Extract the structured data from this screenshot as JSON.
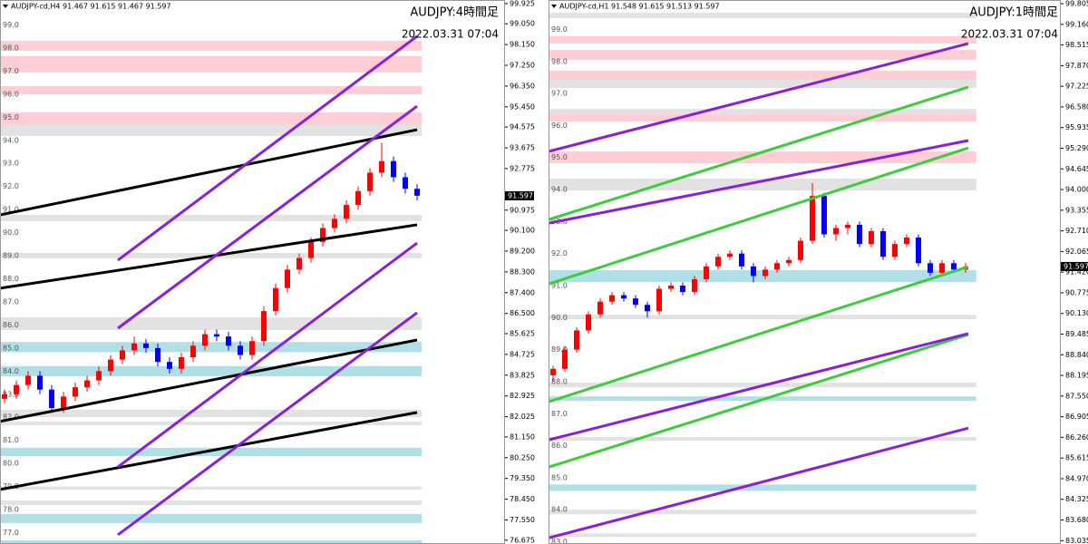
{
  "chart_data": [
    {
      "type": "candlestick",
      "title": "AUDJPY-cd,H4  91.467 91.615 91.467 91.597",
      "subtitle": "AUDJPY:4時間足",
      "annotation": "2022.03.31 07:04",
      "up_color": "#ff0000",
      "down_color": "#0000ff",
      "last_price": 91.597,
      "xlim": [
        -0.385,
        42.46
      ],
      "ylim": [
        76.51,
        100.08
      ],
      "open": [
        82.8,
        83.0,
        83.4,
        83.8,
        83.2,
        82.4,
        82.9,
        83.3,
        83.6,
        84.0,
        84.5,
        84.9,
        85.2,
        85.0,
        84.4,
        84.1,
        84.6,
        85.1,
        85.6,
        85.5,
        85.1,
        84.7,
        85.3,
        86.6,
        87.6,
        88.4,
        88.9,
        89.6,
        90.2,
        90.6,
        91.2,
        91.8,
        92.6,
        93.1,
        92.4,
        91.9
      ],
      "high": [
        83.2,
        83.6,
        84.0,
        84.0,
        83.4,
        83.1,
        83.5,
        83.8,
        84.2,
        84.7,
        85.1,
        85.5,
        85.4,
        85.2,
        84.6,
        84.8,
        85.3,
        85.8,
        85.8,
        85.7,
        85.3,
        85.5,
        86.8,
        87.8,
        88.6,
        89.1,
        89.8,
        90.4,
        90.8,
        91.4,
        92.0,
        92.8,
        93.9,
        93.3,
        92.6,
        92.1
      ],
      "low": [
        82.6,
        82.8,
        83.2,
        83.0,
        82.2,
        82.2,
        82.7,
        83.1,
        83.4,
        83.8,
        84.3,
        84.7,
        84.8,
        84.2,
        83.9,
        83.9,
        84.4,
        84.9,
        85.3,
        84.9,
        84.5,
        84.5,
        85.1,
        86.4,
        87.4,
        88.2,
        88.7,
        89.4,
        90.0,
        90.4,
        91.0,
        91.6,
        92.4,
        92.2,
        91.7,
        91.4
      ],
      "close": [
        83.0,
        83.4,
        83.8,
        83.2,
        82.4,
        82.9,
        83.3,
        83.6,
        84.0,
        84.5,
        84.9,
        85.2,
        85.0,
        84.4,
        84.1,
        84.6,
        85.1,
        85.6,
        85.5,
        85.1,
        84.7,
        85.3,
        86.6,
        87.6,
        88.4,
        88.9,
        89.6,
        90.2,
        90.6,
        91.2,
        91.8,
        92.6,
        93.1,
        92.4,
        91.9,
        91.6
      ],
      "zones": [
        {
          "low": 97.88,
          "high": 98.31,
          "color": "#ffcdd5"
        },
        {
          "low": 96.94,
          "high": 97.65,
          "color": "#ffcdd5"
        },
        {
          "low": 95.99,
          "high": 96.35,
          "color": "#ffcdd5"
        },
        {
          "low": 94.66,
          "high": 95.21,
          "color": "#ffcdd5"
        },
        {
          "low": 94.19,
          "high": 94.66,
          "color": "#e2e2e2"
        },
        {
          "low": 90.5,
          "high": 90.77,
          "color": "#e2e2e2"
        },
        {
          "low": 88.89,
          "high": 89.12,
          "color": "#e2e2e2"
        },
        {
          "low": 85.78,
          "high": 86.33,
          "color": "#e2e2e2"
        },
        {
          "low": 84.82,
          "high": 85.26,
          "color": "#b0e0e6"
        },
        {
          "low": 83.78,
          "high": 84.22,
          "color": "#b0e0e6"
        },
        {
          "low": 82.01,
          "high": 82.33,
          "color": "#e2e2e2"
        },
        {
          "low": 81.66,
          "high": 81.82,
          "color": "#e2e2e2"
        },
        {
          "low": 80.32,
          "high": 80.68,
          "color": "#b0e0e6"
        },
        {
          "low": 78.87,
          "high": 79.0,
          "color": "#e2e2e2"
        },
        {
          "low": 78.2,
          "high": 78.4,
          "color": "#e2e2e2"
        },
        {
          "low": 77.42,
          "high": 77.81,
          "color": "#b0e0e6"
        },
        {
          "low": 76.51,
          "high": 76.67,
          "color": "#b0e0e6"
        }
      ],
      "lines": [
        {
          "x": [
            -0.385,
            35
          ],
          "y": [
            90.77,
            94.46
          ],
          "color": "#000000"
        },
        {
          "x": [
            -0.385,
            35
          ],
          "y": [
            87.59,
            90.34
          ],
          "color": "#000000"
        },
        {
          "x": [
            -0.385,
            35
          ],
          "y": [
            81.82,
            85.35
          ],
          "color": "#000000"
        },
        {
          "x": [
            -0.385,
            35
          ],
          "y": [
            78.87,
            82.21
          ],
          "color": "#000000"
        },
        {
          "x": [
            9.62,
            35
          ],
          "y": [
            88.81,
            98.51
          ],
          "color": "#8b1fd6"
        },
        {
          "x": [
            9.62,
            35
          ],
          "y": [
            85.86,
            95.48
          ],
          "color": "#8b1fd6"
        },
        {
          "x": [
            9.62,
            35
          ],
          "y": [
            79.85,
            89.55
          ],
          "color": "#8b1fd6"
        },
        {
          "x": [
            9.62,
            35
          ],
          "y": [
            76.91,
            86.53
          ],
          "color": "#8b1fd6"
        }
      ],
      "yticks": [
        99.925,
        {
          "value": 99.05,
          "label": "99.050"
        },
        {
          "value": 98.15,
          "label": "98.150"
        },
        {
          "value": 97.25,
          "label": "97.250"
        },
        {
          "value": 96.35,
          "label": "96.350"
        },
        {
          "value": 95.45,
          "label": "95.450"
        },
        94.575,
        93.675,
        92.775,
        90.975,
        {
          "value": 90.1,
          "label": "90.100"
        },
        {
          "value": 89.2,
          "label": "89.200"
        },
        {
          "value": 88.3,
          "label": "88.300"
        },
        {
          "value": 87.4,
          "label": "87.400"
        },
        {
          "value": 86.5,
          "label": "86.500"
        },
        85.625,
        84.725,
        83.825,
        82.925,
        82.025,
        {
          "value": 81.15,
          "label": "81.150"
        },
        {
          "value": 80.25,
          "label": "80.250"
        },
        {
          "value": 79.35,
          "label": "79.350"
        },
        {
          "value": 78.45,
          "label": "78.450"
        },
        {
          "value": 77.55,
          "label": "77.550"
        },
        76.675
      ],
      "level_labels": [
        {
          "value": 99,
          "label": "99.0"
        },
        {
          "value": 98,
          "label": "98.0"
        },
        {
          "value": 97,
          "label": "97.0"
        },
        {
          "value": 96,
          "label": "96.0"
        },
        {
          "value": 95,
          "label": "95.0"
        },
        {
          "value": 94,
          "label": "94.0"
        },
        {
          "value": 93,
          "label": "93.0"
        },
        {
          "value": 92,
          "label": "92.0"
        },
        {
          "value": 91,
          "label": "91.0"
        },
        {
          "value": 90,
          "label": "90.0"
        },
        {
          "value": 89,
          "label": "89.0"
        },
        {
          "value": 88,
          "label": "88.0"
        },
        {
          "value": 87,
          "label": "87.0"
        },
        {
          "value": 86,
          "label": "86.0"
        },
        {
          "value": 85,
          "label": "85.0"
        },
        {
          "value": 84,
          "label": "84.0"
        },
        {
          "value": 83,
          "label": "83.0"
        },
        {
          "value": 82,
          "label": "82.0"
        },
        {
          "value": 81,
          "label": "81.0"
        },
        {
          "value": 80,
          "label": "80.0"
        },
        {
          "value": 79,
          "label": "79.0"
        },
        {
          "value": 78,
          "label": "78.0"
        },
        {
          "value": 77,
          "label": "77.0"
        }
      ]
    },
    {
      "type": "candlestick",
      "title": "AUDJPY-cd,H1  91.548 91.615 91.513 91.597",
      "subtitle": "AUDJPY:1時間足",
      "annotation": "2022.03.31 07:04",
      "up_color": "#ff0000",
      "down_color": "#0000ff",
      "last_price": 91.597,
      "xlim": [
        -0.385,
        43.08
      ],
      "ylim": [
        82.93,
        99.92
      ],
      "open": [
        88.2,
        88.4,
        89.0,
        89.6,
        90.1,
        90.5,
        90.7,
        90.6,
        90.4,
        90.2,
        90.9,
        91.0,
        90.8,
        91.2,
        91.6,
        91.9,
        92.0,
        91.6,
        91.3,
        91.5,
        91.7,
        91.8,
        92.4,
        93.8,
        92.6,
        92.8,
        92.9,
        92.3,
        92.7,
        91.9,
        92.3,
        92.5,
        91.7,
        91.4,
        91.7,
        91.5
      ],
      "high": [
        88.5,
        89.1,
        89.7,
        90.2,
        90.6,
        90.8,
        90.8,
        90.7,
        90.5,
        91.0,
        91.1,
        91.1,
        91.3,
        91.7,
        92.0,
        92.1,
        92.1,
        91.7,
        91.6,
        91.8,
        91.9,
        92.5,
        94.2,
        93.9,
        92.9,
        93.0,
        93.0,
        92.8,
        92.8,
        92.4,
        92.6,
        92.6,
        91.8,
        91.8,
        91.8,
        91.7
      ],
      "low": [
        88.0,
        88.3,
        88.9,
        89.5,
        90.0,
        90.4,
        90.5,
        90.3,
        90.0,
        90.1,
        90.8,
        90.7,
        90.7,
        91.1,
        91.5,
        91.8,
        91.5,
        91.1,
        91.2,
        91.4,
        91.6,
        91.7,
        92.3,
        92.5,
        92.4,
        92.6,
        92.2,
        92.2,
        91.8,
        91.8,
        92.2,
        91.6,
        91.3,
        91.3,
        91.4,
        91.4
      ],
      "close": [
        88.4,
        89.0,
        89.6,
        90.1,
        90.5,
        90.7,
        90.6,
        90.4,
        90.2,
        90.9,
        91.0,
        90.8,
        91.2,
        91.6,
        91.9,
        92.0,
        91.6,
        91.3,
        91.5,
        91.7,
        91.8,
        92.4,
        93.8,
        92.6,
        92.8,
        92.9,
        92.3,
        92.7,
        91.9,
        92.3,
        92.5,
        91.7,
        91.4,
        91.7,
        91.5,
        91.6
      ],
      "zones": [
        {
          "low": 99.35,
          "high": 99.52,
          "color": "#e2e2e2"
        },
        {
          "low": 98.56,
          "high": 98.79,
          "color": "#ffcdd5"
        },
        {
          "low": 98.05,
          "high": 98.36,
          "color": "#ffcdd5"
        },
        {
          "low": 97.43,
          "high": 97.71,
          "color": "#ffcdd5"
        },
        {
          "low": 97.17,
          "high": 97.43,
          "color": "#e2e2e2"
        },
        {
          "low": 96.35,
          "high": 96.52,
          "color": "#e2e2e2"
        },
        {
          "low": 96.12,
          "high": 96.35,
          "color": "#ffcdd5"
        },
        {
          "low": 94.82,
          "high": 95.19,
          "color": "#ffcdd5"
        },
        {
          "low": 93.97,
          "high": 94.34,
          "color": "#e2e2e2"
        },
        {
          "low": 91.11,
          "high": 91.48,
          "color": "#b0e0e6"
        },
        {
          "low": 89.95,
          "high": 90.09,
          "color": "#e2e2e2"
        },
        {
          "low": 87.82,
          "high": 87.97,
          "color": "#e2e2e2"
        },
        {
          "low": 87.4,
          "high": 87.54,
          "color": "#b0e0e6"
        },
        {
          "low": 86.15,
          "high": 86.27,
          "color": "#e2e2e2"
        },
        {
          "low": 84.59,
          "high": 84.79,
          "color": "#b0e0e6"
        },
        {
          "low": 83.86,
          "high": 84.0,
          "color": "#e2e2e2"
        },
        {
          "low": 83.15,
          "high": 83.26,
          "color": "#e2e2e2"
        }
      ],
      "lines": [
        {
          "x": [
            -0.385,
            35.23
          ],
          "y": [
            93.06,
            97.2
          ],
          "color": "#3ccc3c"
        },
        {
          "x": [
            -0.385,
            35.23
          ],
          "y": [
            91.05,
            95.3
          ],
          "color": "#3ccc3c"
        },
        {
          "x": [
            -0.385,
            35.23
          ],
          "y": [
            87.37,
            91.59
          ],
          "color": "#3ccc3c"
        },
        {
          "x": [
            -0.385,
            35.23
          ],
          "y": [
            85.33,
            89.47
          ],
          "color": "#3ccc3c"
        },
        {
          "x": [
            -0.385,
            35.23
          ],
          "y": [
            95.19,
            98.56
          ],
          "color": "#8b1fd6"
        },
        {
          "x": [
            -0.385,
            35.23
          ],
          "y": [
            92.95,
            95.53
          ],
          "color": "#8b1fd6"
        },
        {
          "x": [
            -0.385,
            35.23
          ],
          "y": [
            86.18,
            89.5
          ],
          "color": "#8b1fd6"
        },
        {
          "x": [
            -0.385,
            35.23
          ],
          "y": [
            83.12,
            86.55
          ],
          "color": "#8b1fd6"
        }
      ],
      "yticks": [
        99.805,
        {
          "value": 99.16,
          "label": "99.160"
        },
        98.515,
        {
          "value": 97.87,
          "label": "97.870"
        },
        97.225,
        {
          "value": 96.58,
          "label": "96.580"
        },
        95.935,
        {
          "value": 95.29,
          "label": "95.290"
        },
        94.645,
        {
          "value": 94,
          "label": "94.000"
        },
        93.355,
        {
          "value": 92.71,
          "label": "92.710"
        },
        92.065,
        {
          "value": 91.42,
          "label": "91.420"
        },
        90.775,
        {
          "value": 90.13,
          "label": "90.130"
        },
        89.485,
        {
          "value": 88.84,
          "label": "88.840"
        },
        88.195,
        {
          "value": 87.55,
          "label": "87.550"
        },
        86.905,
        {
          "value": 86.26,
          "label": "86.260"
        },
        85.615,
        {
          "value": 84.97,
          "label": "84.970"
        },
        84.325,
        {
          "value": 83.68,
          "label": "83.680"
        },
        83.035
      ],
      "level_labels": [
        {
          "value": 99,
          "label": "99.0"
        },
        {
          "value": 98,
          "label": "98.0"
        },
        {
          "value": 97,
          "label": "97.0"
        },
        {
          "value": 96,
          "label": "96.0"
        },
        {
          "value": 95,
          "label": "95.0"
        },
        {
          "value": 94,
          "label": "94.0"
        },
        {
          "value": 93,
          "label": "93.0"
        },
        {
          "value": 92,
          "label": "92.0"
        },
        {
          "value": 91,
          "label": "91.0"
        },
        {
          "value": 90,
          "label": "90.0"
        },
        {
          "value": 89,
          "label": "89.0"
        },
        {
          "value": 88,
          "label": "88.0"
        },
        {
          "value": 87,
          "label": "87.0"
        },
        {
          "value": 86,
          "label": "86.0"
        },
        {
          "value": 85,
          "label": "85.0"
        },
        {
          "value": 84,
          "label": "84.0"
        },
        {
          "value": 83,
          "label": "83.0"
        }
      ]
    }
  ]
}
